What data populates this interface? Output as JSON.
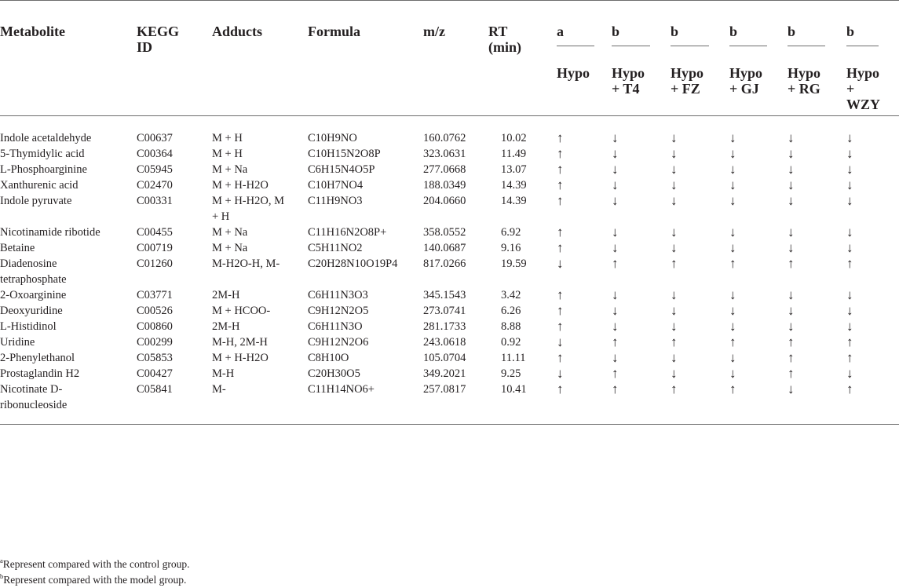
{
  "headers": {
    "metabolite": "Metabolite",
    "kegg_id": "KEGG ID",
    "adducts": "Adducts",
    "formula": "Formula",
    "mz": "m/z",
    "rt": "RT (min)",
    "groups": [
      {
        "mark": "a",
        "label": "Hypo"
      },
      {
        "mark": "b",
        "label": "Hypo + T4"
      },
      {
        "mark": "b",
        "label": "Hypo + FZ"
      },
      {
        "mark": "b",
        "label": "Hypo + GJ"
      },
      {
        "mark": "b",
        "label": "Hypo + RG"
      },
      {
        "mark": "b",
        "label": "Hypo + WZY"
      }
    ]
  },
  "rows": [
    {
      "metabolite": "Indole acetaldehyde",
      "kegg": "C00637",
      "adducts": "M + H",
      "formula": "C10H9NO",
      "mz": "160.0762",
      "rt": "10.02",
      "arrows": [
        "↑",
        "↓",
        "↓",
        "↓",
        "↓",
        "↓"
      ]
    },
    {
      "metabolite": "5-Thymidylic acid",
      "kegg": "C00364",
      "adducts": "M + H",
      "formula": "C10H15N2O8P",
      "mz": "323.0631",
      "rt": "11.49",
      "arrows": [
        "↑",
        "↓",
        "↓",
        "↓",
        "↓",
        "↓"
      ]
    },
    {
      "metabolite": "L-Phosphoarginine",
      "kegg": "C05945",
      "adducts": "M + Na",
      "formula": "C6H15N4O5P",
      "mz": "277.0668",
      "rt": "13.07",
      "arrows": [
        "↑",
        "↓",
        "↓",
        "↓",
        "↓",
        "↓"
      ]
    },
    {
      "metabolite": "Xanthurenic acid",
      "kegg": "C02470",
      "adducts": "M + H-H2O",
      "formula": "C10H7NO4",
      "mz": "188.0349",
      "rt": "14.39",
      "arrows": [
        "↑",
        "↓",
        "↓",
        "↓",
        "↓",
        "↓"
      ]
    },
    {
      "metabolite": "Indole pyruvate",
      "kegg": "C00331",
      "adducts": "M + H-H2O, M + H",
      "formula": "C11H9NO3",
      "mz": "204.0660",
      "rt": "14.39",
      "arrows": [
        "↑",
        "↓",
        "↓",
        "↓",
        "↓",
        "↓"
      ]
    },
    {
      "metabolite": "Nicotinamide ribotide",
      "kegg": "C00455",
      "adducts": "M + Na",
      "formula": "C11H16N2O8P+",
      "mz": "358.0552",
      "rt": "6.92",
      "arrows": [
        "↑",
        "↓",
        "↓",
        "↓",
        "↓",
        "↓"
      ]
    },
    {
      "metabolite": "Betaine",
      "kegg": "C00719",
      "adducts": "M + Na",
      "formula": "C5H11NO2",
      "mz": "140.0687",
      "rt": "9.16",
      "arrows": [
        "↑",
        "↓",
        "↓",
        "↓",
        "↓",
        "↓"
      ]
    },
    {
      "metabolite": "Diadenosine tetraphosphate",
      "kegg": "C01260",
      "adducts": "M-H2O-H, M-",
      "formula": "C20H28N10O19P4",
      "mz": "817.0266",
      "rt": "19.59",
      "arrows": [
        "↓",
        "↑",
        "↑",
        "↑",
        "↑",
        "↑"
      ]
    },
    {
      "metabolite": "2-Oxoarginine",
      "kegg": "C03771",
      "adducts": "2M-H",
      "formula": "C6H11N3O3",
      "mz": "345.1543",
      "rt": "3.42",
      "arrows": [
        "↑",
        "↓",
        "↓",
        "↓",
        "↓",
        "↓"
      ]
    },
    {
      "metabolite": "Deoxyuridine",
      "kegg": "C00526",
      "adducts": "M + HCOO-",
      "formula": "C9H12N2O5",
      "mz": "273.0741",
      "rt": "6.26",
      "arrows": [
        "↑",
        "↓",
        "↓",
        "↓",
        "↓",
        "↓"
      ]
    },
    {
      "metabolite": "L-Histidinol",
      "kegg": "C00860",
      "adducts": "2M-H",
      "formula": "C6H11N3O",
      "mz": "281.1733",
      "rt": "8.88",
      "arrows": [
        "↑",
        "↓",
        "↓",
        "↓",
        "↓",
        "↓"
      ]
    },
    {
      "metabolite": "Uridine",
      "kegg": "C00299",
      "adducts": "M-H, 2M-H",
      "formula": "C9H12N2O6",
      "mz": "243.0618",
      "rt": "0.92",
      "arrows": [
        "↓",
        "↑",
        "↑",
        "↑",
        "↑",
        "↑"
      ]
    },
    {
      "metabolite": "2-Phenylethanol",
      "kegg": "C05853",
      "adducts": "M + H-H2O",
      "formula": "C8H10O",
      "mz": "105.0704",
      "rt": "11.11",
      "arrows": [
        "↑",
        "↓",
        "↓",
        "↓",
        "↑",
        "↑"
      ]
    },
    {
      "metabolite": "Prostaglandin H2",
      "kegg": "C00427",
      "adducts": "M-H",
      "formula": "C20H30O5",
      "mz": "349.2021",
      "rt": "9.25",
      "arrows": [
        "↓",
        "↑",
        "↓",
        "↓",
        "↑",
        "↓"
      ]
    },
    {
      "metabolite": "Nicotinate D-ribonucleoside",
      "kegg": "C05841",
      "adducts": "M-",
      "formula": "C11H14NO6+",
      "mz": "257.0817",
      "rt": "10.41",
      "arrows": [
        "↑",
        "↑",
        "↑",
        "↑",
        "↓",
        "↑"
      ]
    }
  ],
  "footnotes": [
    {
      "mark": "a",
      "text": "Represent compared with the control group."
    },
    {
      "mark": "b",
      "text": "Represent compared with the model group."
    }
  ]
}
